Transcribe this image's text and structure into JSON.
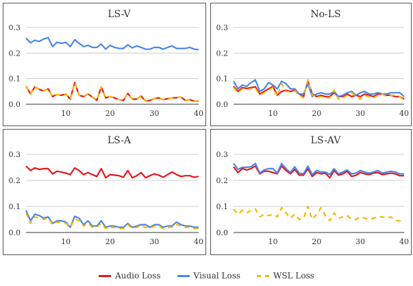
{
  "figure": {
    "legend": [
      {
        "label": "Audio Loss",
        "color": "#e8141a",
        "style": "solid"
      },
      {
        "label": "Visual Loss",
        "color": "#4a86e8",
        "style": "solid"
      },
      {
        "label": "WSL Loss",
        "color": "#f2b900",
        "style": "dashed"
      }
    ]
  },
  "chart_data": [
    {
      "type": "line",
      "title": "LS-V",
      "xlim": [
        1,
        40
      ],
      "ylim": [
        0,
        0.3
      ],
      "xticks": [
        10,
        20,
        30,
        40
      ],
      "yticks": [
        0.0,
        0.1,
        0.2,
        0.3
      ],
      "grid": "horizontal",
      "x": [
        1,
        2,
        3,
        4,
        5,
        6,
        7,
        8,
        9,
        10,
        11,
        12,
        13,
        14,
        15,
        16,
        17,
        18,
        19,
        20,
        21,
        22,
        23,
        24,
        25,
        26,
        27,
        28,
        29,
        30,
        31,
        32,
        33,
        34,
        35,
        36,
        37,
        38,
        39,
        40
      ],
      "series": [
        {
          "name": "Audio Loss",
          "color": "#e8141a",
          "dashed": false,
          "values": [
            0.072,
            0.04,
            0.068,
            0.058,
            0.052,
            0.06,
            0.03,
            0.038,
            0.035,
            0.04,
            0.02,
            0.085,
            0.035,
            0.03,
            0.04,
            0.028,
            0.015,
            0.068,
            0.025,
            0.03,
            0.025,
            0.018,
            0.015,
            0.042,
            0.02,
            0.02,
            0.032,
            0.012,
            0.015,
            0.022,
            0.025,
            0.018,
            0.022,
            0.024,
            0.026,
            0.028,
            0.015,
            0.018,
            0.012,
            0.012
          ]
        },
        {
          "name": "Visual Loss",
          "color": "#4a86e8",
          "dashed": false,
          "values": [
            0.258,
            0.24,
            0.25,
            0.245,
            0.255,
            0.26,
            0.225,
            0.242,
            0.238,
            0.242,
            0.225,
            0.252,
            0.238,
            0.225,
            0.23,
            0.222,
            0.222,
            0.235,
            0.215,
            0.23,
            0.222,
            0.218,
            0.218,
            0.232,
            0.22,
            0.228,
            0.222,
            0.215,
            0.215,
            0.222,
            0.222,
            0.215,
            0.222,
            0.228,
            0.218,
            0.218,
            0.218,
            0.222,
            0.215,
            0.213
          ]
        },
        {
          "name": "WSL Loss",
          "color": "#f2b900",
          "dashed": true,
          "values": [
            0.072,
            0.04,
            0.068,
            0.058,
            0.052,
            0.06,
            0.03,
            0.038,
            0.035,
            0.04,
            0.02,
            0.085,
            0.035,
            0.03,
            0.04,
            0.028,
            0.015,
            0.068,
            0.025,
            0.03,
            0.025,
            0.018,
            0.015,
            0.042,
            0.02,
            0.02,
            0.032,
            0.012,
            0.015,
            0.022,
            0.025,
            0.018,
            0.022,
            0.024,
            0.026,
            0.028,
            0.015,
            0.018,
            0.012,
            0.012
          ]
        }
      ]
    },
    {
      "type": "line",
      "title": "No-LS",
      "xlim": [
        1,
        40
      ],
      "ylim": [
        0,
        0.3
      ],
      "xticks": [
        10,
        20,
        30,
        40
      ],
      "yticks": [
        0.0,
        0.1,
        0.2,
        0.3
      ],
      "grid": "horizontal",
      "x": [
        1,
        2,
        3,
        4,
        5,
        6,
        7,
        8,
        9,
        10,
        11,
        12,
        13,
        14,
        15,
        16,
        17,
        18,
        19,
        20,
        21,
        22,
        23,
        24,
        25,
        26,
        27,
        28,
        29,
        30,
        31,
        32,
        33,
        34,
        35,
        36,
        37,
        38,
        39,
        40
      ],
      "series": [
        {
          "name": "Audio Loss",
          "color": "#e8141a",
          "dashed": false,
          "values": [
            0.07,
            0.05,
            0.065,
            0.062,
            0.065,
            0.068,
            0.04,
            0.05,
            0.06,
            0.07,
            0.035,
            0.05,
            0.055,
            0.05,
            0.055,
            0.04,
            0.03,
            0.09,
            0.04,
            0.03,
            0.035,
            0.03,
            0.03,
            0.045,
            0.03,
            0.03,
            0.04,
            0.03,
            0.035,
            0.03,
            0.04,
            0.035,
            0.03,
            0.04,
            0.04,
            0.035,
            0.035,
            0.03,
            0.03,
            0.02
          ]
        },
        {
          "name": "Visual Loss",
          "color": "#4a86e8",
          "dashed": false,
          "values": [
            0.09,
            0.06,
            0.075,
            0.07,
            0.085,
            0.095,
            0.05,
            0.06,
            0.085,
            0.075,
            0.06,
            0.09,
            0.08,
            0.06,
            0.06,
            0.04,
            0.04,
            0.08,
            0.03,
            0.04,
            0.045,
            0.04,
            0.04,
            0.05,
            0.03,
            0.035,
            0.045,
            0.05,
            0.035,
            0.045,
            0.05,
            0.04,
            0.04,
            0.045,
            0.04,
            0.04,
            0.045,
            0.045,
            0.045,
            0.03
          ]
        },
        {
          "name": "WSL Loss",
          "color": "#f2b900",
          "dashed": true,
          "values": [
            0.065,
            0.045,
            0.06,
            0.058,
            0.06,
            0.062,
            0.035,
            0.045,
            0.055,
            0.065,
            0.03,
            0.08,
            0.05,
            0.048,
            0.052,
            0.035,
            0.025,
            0.095,
            0.035,
            0.028,
            0.03,
            0.025,
            0.025,
            0.055,
            0.02,
            0.025,
            0.035,
            0.045,
            0.03,
            0.02,
            0.035,
            0.03,
            0.025,
            0.035,
            0.04,
            0.03,
            0.035,
            0.035,
            0.03,
            0.015
          ]
        }
      ]
    },
    {
      "type": "line",
      "title": "LS-A",
      "xlim": [
        1,
        40
      ],
      "ylim": [
        0,
        0.3
      ],
      "xticks": [
        10,
        20,
        30,
        40
      ],
      "yticks": [
        0.0,
        0.1,
        0.2,
        0.3
      ],
      "grid": "horizontal",
      "x": [
        1,
        2,
        3,
        4,
        5,
        6,
        7,
        8,
        9,
        10,
        11,
        12,
        13,
        14,
        15,
        16,
        17,
        18,
        19,
        20,
        21,
        22,
        23,
        24,
        25,
        26,
        27,
        28,
        29,
        30,
        31,
        32,
        33,
        34,
        35,
        36,
        37,
        38,
        39,
        40
      ],
      "series": [
        {
          "name": "Audio Loss",
          "color": "#e8141a",
          "dashed": false,
          "values": [
            0.255,
            0.238,
            0.248,
            0.242,
            0.245,
            0.245,
            0.225,
            0.235,
            0.232,
            0.228,
            0.222,
            0.248,
            0.238,
            0.222,
            0.23,
            0.222,
            0.215,
            0.245,
            0.21,
            0.222,
            0.22,
            0.218,
            0.212,
            0.238,
            0.21,
            0.218,
            0.23,
            0.21,
            0.218,
            0.225,
            0.22,
            0.212,
            0.222,
            0.232,
            0.222,
            0.215,
            0.218,
            0.218,
            0.212,
            0.215
          ]
        },
        {
          "name": "Visual Loss",
          "color": "#4a86e8",
          "dashed": false,
          "values": [
            0.085,
            0.045,
            0.07,
            0.065,
            0.055,
            0.06,
            0.035,
            0.045,
            0.045,
            0.04,
            0.02,
            0.062,
            0.055,
            0.03,
            0.045,
            0.025,
            0.025,
            0.045,
            0.02,
            0.025,
            0.025,
            0.02,
            0.02,
            0.035,
            0.02,
            0.025,
            0.03,
            0.03,
            0.02,
            0.03,
            0.03,
            0.02,
            0.025,
            0.025,
            0.04,
            0.03,
            0.025,
            0.025,
            0.02,
            0.02
          ]
        },
        {
          "name": "WSL Loss",
          "color": "#f2b900",
          "dashed": true,
          "values": [
            0.075,
            0.035,
            0.06,
            0.055,
            0.05,
            0.055,
            0.03,
            0.04,
            0.04,
            0.035,
            0.02,
            0.052,
            0.045,
            0.025,
            0.035,
            0.02,
            0.02,
            0.035,
            0.015,
            0.02,
            0.02,
            0.015,
            0.015,
            0.03,
            0.015,
            0.02,
            0.025,
            0.02,
            0.015,
            0.025,
            0.025,
            0.015,
            0.02,
            0.02,
            0.03,
            0.025,
            0.02,
            0.02,
            0.015,
            0.015
          ]
        }
      ]
    },
    {
      "type": "line",
      "title": "LS-AV",
      "xlim": [
        1,
        40
      ],
      "ylim": [
        0,
        0.3
      ],
      "xticks": [
        10,
        20,
        30,
        40
      ],
      "yticks": [
        0.0,
        0.1,
        0.2,
        0.3
      ],
      "grid": "horizontal",
      "x": [
        1,
        2,
        3,
        4,
        5,
        6,
        7,
        8,
        9,
        10,
        11,
        12,
        13,
        14,
        15,
        16,
        17,
        18,
        19,
        20,
        21,
        22,
        23,
        24,
        25,
        26,
        27,
        28,
        29,
        30,
        31,
        32,
        33,
        34,
        35,
        36,
        37,
        38,
        39,
        40
      ],
      "series": [
        {
          "name": "Audio Loss",
          "color": "#e8141a",
          "dashed": false,
          "values": [
            0.252,
            0.23,
            0.245,
            0.24,
            0.245,
            0.255,
            0.225,
            0.235,
            0.235,
            0.23,
            0.225,
            0.255,
            0.238,
            0.225,
            0.242,
            0.22,
            0.22,
            0.245,
            0.215,
            0.23,
            0.225,
            0.228,
            0.21,
            0.238,
            0.22,
            0.225,
            0.235,
            0.215,
            0.22,
            0.23,
            0.225,
            0.222,
            0.228,
            0.23,
            0.222,
            0.225,
            0.228,
            0.225,
            0.218,
            0.218
          ]
        },
        {
          "name": "Visual Loss",
          "color": "#4a86e8",
          "dashed": false,
          "values": [
            0.265,
            0.242,
            0.25,
            0.25,
            0.252,
            0.265,
            0.228,
            0.24,
            0.245,
            0.245,
            0.228,
            0.265,
            0.245,
            0.23,
            0.252,
            0.228,
            0.225,
            0.255,
            0.222,
            0.238,
            0.232,
            0.232,
            0.222,
            0.245,
            0.225,
            0.232,
            0.24,
            0.225,
            0.228,
            0.238,
            0.232,
            0.228,
            0.232,
            0.238,
            0.228,
            0.232,
            0.235,
            0.232,
            0.225,
            0.225
          ]
        },
        {
          "name": "WSL Loss",
          "color": "#f2b900",
          "dashed": true,
          "values": [
            0.09,
            0.07,
            0.085,
            0.075,
            0.085,
            0.09,
            0.06,
            0.07,
            0.065,
            0.07,
            0.06,
            0.095,
            0.075,
            0.055,
            0.07,
            0.05,
            0.055,
            0.1,
            0.05,
            0.07,
            0.095,
            0.065,
            0.045,
            0.075,
            0.055,
            0.06,
            0.065,
            0.05,
            0.05,
            0.06,
            0.055,
            0.05,
            0.055,
            0.06,
            0.06,
            0.055,
            0.06,
            0.045,
            0.045,
            0.045
          ]
        }
      ]
    }
  ]
}
